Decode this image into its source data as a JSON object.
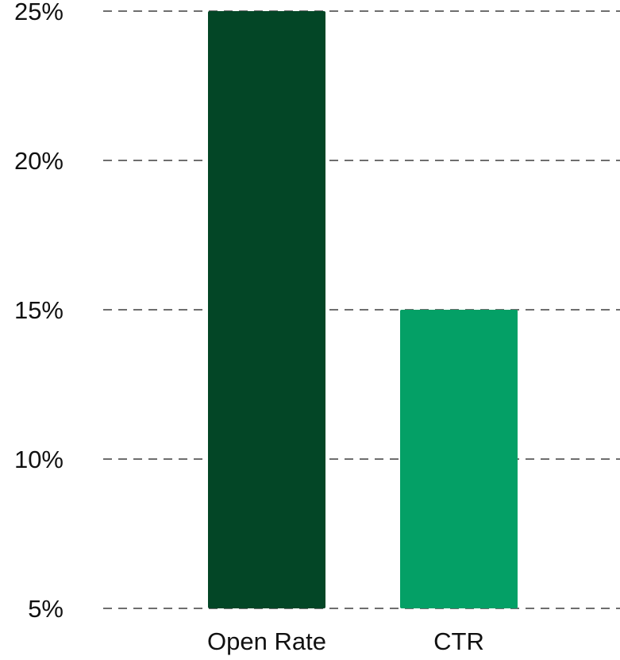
{
  "chart_data": {
    "type": "bar",
    "title": "",
    "xlabel": "",
    "ylabel": "",
    "categories": [
      "Open Rate",
      "CTR"
    ],
    "values": [
      25,
      15
    ],
    "colors": [
      "#034626",
      "#04a066"
    ],
    "ylim": [
      5,
      25
    ],
    "yticks": [
      {
        "value": 5,
        "label": "5%"
      },
      {
        "value": 10,
        "label": "10%"
      },
      {
        "value": 15,
        "label": "15%"
      },
      {
        "value": 20,
        "label": "20%"
      },
      {
        "value": 25,
        "label": "25%"
      }
    ],
    "grid": true,
    "grid_style": "dashed",
    "grid_color": "#6e6e6e"
  }
}
